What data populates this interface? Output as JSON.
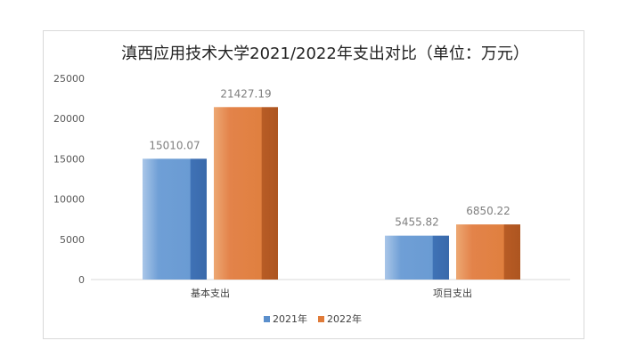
{
  "chart_data": {
    "type": "bar",
    "title": "滇西应用技术大学2021/2022年支出对比（单位：万元）",
    "categories": [
      "基本支出",
      "项目支出"
    ],
    "series": [
      {
        "name": "2021年",
        "values": [
          15010.07,
          5455.82
        ],
        "labels": [
          "15010.07",
          "5455.82"
        ],
        "color": "#5b8fcc"
      },
      {
        "name": "2022年",
        "values": [
          21427.19,
          6850.22
        ],
        "labels": [
          "21427.19",
          "6850.22"
        ],
        "color": "#e07b39"
      }
    ],
    "yticks": [
      "0",
      "5000",
      "10000",
      "15000",
      "20000",
      "25000"
    ],
    "ylim": [
      0,
      25000
    ],
    "grid": false,
    "legend": "bottom",
    "xlabel": "",
    "ylabel": ""
  }
}
